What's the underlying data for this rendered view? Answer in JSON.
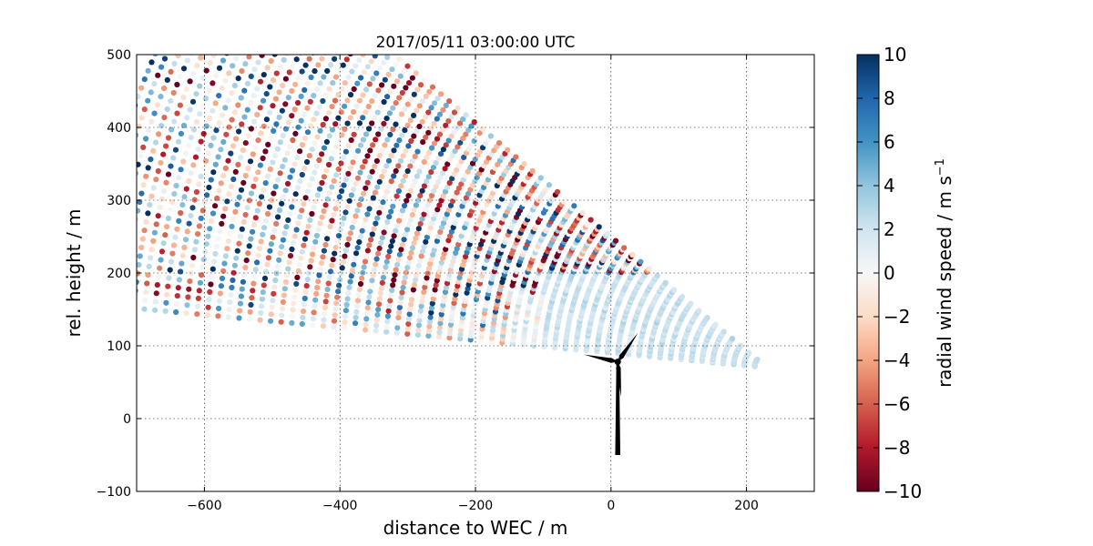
{
  "chart_data": {
    "type": "scatter",
    "title": "2017/05/11 03:00:00 UTC",
    "xlabel": "distance to WEC / m",
    "ylabel": "rel. height / m",
    "xlim": [
      -700,
      300
    ],
    "ylim": [
      -100,
      500
    ],
    "xticks": [
      -600,
      -400,
      -200,
      0,
      200
    ],
    "xtick_labels": [
      "−600",
      "−400",
      "−200",
      "0",
      "200"
    ],
    "yticks": [
      -100,
      0,
      100,
      200,
      300,
      400,
      500
    ],
    "ytick_labels": [
      "−100",
      "0",
      "100",
      "200",
      "300",
      "400",
      "500"
    ],
    "grid": true,
    "colorbar": {
      "label": "radial wind speed / m s",
      "label_superscript": "−1",
      "vmin": -10,
      "vmax": 10,
      "ticks": [
        -10,
        -8,
        -6,
        -4,
        -2,
        0,
        2,
        4,
        6,
        8,
        10
      ],
      "tick_labels": [
        "−10",
        "−8",
        "−6",
        "−4",
        "−2",
        "0",
        "2",
        "4",
        "6",
        "8",
        "10"
      ],
      "colormap": "RdBu",
      "colors": [
        "#67001f",
        "#b2182b",
        "#d6604d",
        "#f4a582",
        "#fddbc7",
        "#f7f7f7",
        "#d1e5f0",
        "#92c5de",
        "#4393c3",
        "#2166ac",
        "#053061"
      ]
    },
    "scan": {
      "origin": [
        230,
        70
      ],
      "range_min": 0,
      "range_max": 1000,
      "elevation_min_deg": 175,
      "elevation_max_deg": 142
    },
    "turbine": {
      "hub": [
        10,
        78
      ],
      "base_y": -50,
      "blade_tips": [
        [
          40,
          118
        ],
        [
          -40,
          88
        ],
        [
          15,
          30
        ]
      ]
    }
  }
}
